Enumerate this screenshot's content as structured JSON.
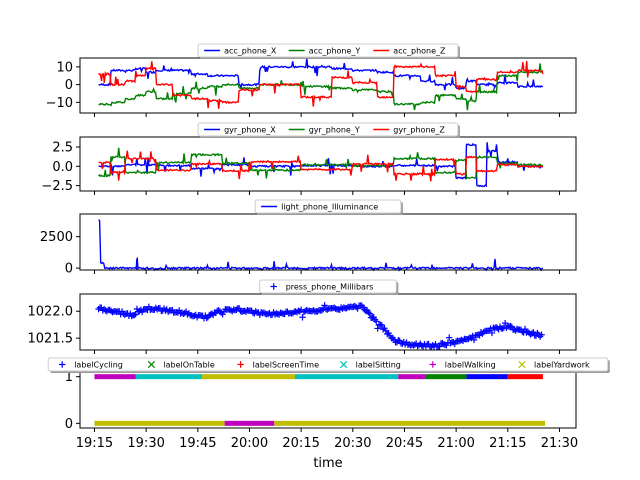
{
  "chart_data": [
    {
      "type": "line",
      "ylim": [
        -16,
        15
      ],
      "yticks": [
        10,
        0,
        -10
      ],
      "ytick_labels": [
        "10",
        "0",
        "−10"
      ],
      "legend": "top-center",
      "series": [
        {
          "name": "acc_phone_X",
          "color": "#0000ff",
          "segments": [
            [
              19.27,
              0
            ],
            [
              19.33,
              8
            ],
            [
              19.4,
              8
            ],
            [
              19.45,
              9
            ],
            [
              19.5,
              7
            ],
            [
              19.55,
              8
            ],
            [
              19.63,
              8
            ],
            [
              19.72,
              6
            ],
            [
              19.8,
              5
            ],
            [
              19.87,
              5
            ],
            [
              19.95,
              0
            ],
            [
              20.05,
              10
            ],
            [
              20.25,
              10
            ],
            [
              20.4,
              9
            ],
            [
              20.5,
              8
            ],
            [
              20.62,
              7
            ],
            [
              20.7,
              5
            ],
            [
              20.83,
              2
            ],
            [
              20.9,
              0
            ],
            [
              21.0,
              -2
            ],
            [
              21.05,
              2
            ],
            [
              21.1,
              0
            ],
            [
              21.2,
              1
            ],
            [
              21.3,
              -1
            ],
            [
              21.42,
              -1
            ]
          ]
        },
        {
          "name": "acc_phone_Y",
          "color": "#008000",
          "segments": [
            [
              19.27,
              -11
            ],
            [
              19.33,
              -10
            ],
            [
              19.4,
              -8
            ],
            [
              19.45,
              -6
            ],
            [
              19.5,
              -4
            ],
            [
              19.55,
              -8
            ],
            [
              19.63,
              -5
            ],
            [
              19.72,
              -2
            ],
            [
              19.8,
              -1
            ],
            [
              19.87,
              0
            ],
            [
              19.95,
              -2
            ],
            [
              20.05,
              0
            ],
            [
              20.25,
              -1
            ],
            [
              20.4,
              -2
            ],
            [
              20.5,
              -3
            ],
            [
              20.62,
              -4
            ],
            [
              20.7,
              -11
            ],
            [
              20.83,
              -10
            ],
            [
              20.9,
              -6
            ],
            [
              21.0,
              -8
            ],
            [
              21.05,
              -9
            ],
            [
              21.1,
              -4
            ],
            [
              21.2,
              5
            ],
            [
              21.3,
              7
            ],
            [
              21.42,
              8
            ]
          ]
        },
        {
          "name": "acc_phone_Z",
          "color": "#ff0000",
          "segments": [
            [
              19.27,
              6
            ],
            [
              19.33,
              0
            ],
            [
              19.4,
              2
            ],
            [
              19.45,
              5
            ],
            [
              19.5,
              9
            ],
            [
              19.55,
              0
            ],
            [
              19.63,
              -6
            ],
            [
              19.72,
              -8
            ],
            [
              19.8,
              -9
            ],
            [
              19.87,
              -10
            ],
            [
              19.95,
              -3
            ],
            [
              20.05,
              0
            ],
            [
              20.25,
              -7
            ],
            [
              20.4,
              4
            ],
            [
              20.5,
              1
            ],
            [
              20.62,
              -7
            ],
            [
              20.7,
              10
            ],
            [
              20.83,
              10
            ],
            [
              20.9,
              5
            ],
            [
              21.0,
              -1
            ],
            [
              21.05,
              -4
            ],
            [
              21.1,
              3
            ],
            [
              21.2,
              7
            ],
            [
              21.3,
              8
            ],
            [
              21.42,
              6
            ]
          ]
        }
      ]
    },
    {
      "type": "line",
      "ylim": [
        -3.2,
        3.8
      ],
      "yticks": [
        2.5,
        0.0,
        -2.5
      ],
      "ytick_labels": [
        "2.5",
        "0.0",
        "−2.5"
      ],
      "legend": "top-center",
      "series": [
        {
          "name": "gyr_phone_X",
          "color": "#0000ff",
          "segments": [
            [
              19.27,
              0
            ],
            [
              19.4,
              0.2
            ],
            [
              19.55,
              0.1
            ],
            [
              19.72,
              -0.3
            ],
            [
              19.87,
              0.2
            ],
            [
              20.0,
              0
            ],
            [
              20.25,
              0.1
            ],
            [
              20.5,
              0
            ],
            [
              20.7,
              0.1
            ],
            [
              20.9,
              0
            ],
            [
              21.0,
              -1.5
            ],
            [
              21.05,
              2.8
            ],
            [
              21.1,
              -2.5
            ],
            [
              21.15,
              2.0
            ],
            [
              21.2,
              0.5
            ],
            [
              21.3,
              0
            ],
            [
              21.42,
              0
            ]
          ]
        },
        {
          "name": "gyr_phone_Y",
          "color": "#008000",
          "segments": [
            [
              19.27,
              -1.2
            ],
            [
              19.33,
              1.2
            ],
            [
              19.4,
              -0.8
            ],
            [
              19.55,
              0.5
            ],
            [
              19.72,
              1.5
            ],
            [
              19.87,
              0.4
            ],
            [
              20.0,
              -0.5
            ],
            [
              20.25,
              0.2
            ],
            [
              20.5,
              0.1
            ],
            [
              20.7,
              1.0
            ],
            [
              20.9,
              -0.8
            ],
            [
              21.0,
              0.8
            ],
            [
              21.05,
              -1.5
            ],
            [
              21.1,
              1.2
            ],
            [
              21.2,
              0.4
            ],
            [
              21.3,
              0.2
            ],
            [
              21.42,
              0
            ]
          ]
        },
        {
          "name": "gyr_phone_Z",
          "color": "#ff0000",
          "segments": [
            [
              19.27,
              0.5
            ],
            [
              19.33,
              -0.8
            ],
            [
              19.4,
              1.0
            ],
            [
              19.55,
              -0.5
            ],
            [
              19.72,
              0.3
            ],
            [
              19.87,
              -0.6
            ],
            [
              20.0,
              0.6
            ],
            [
              20.25,
              -0.4
            ],
            [
              20.5,
              0.3
            ],
            [
              20.7,
              -1.0
            ],
            [
              20.9,
              0.9
            ],
            [
              21.0,
              -1.0
            ],
            [
              21.05,
              1.2
            ],
            [
              21.1,
              -0.6
            ],
            [
              21.2,
              0.2
            ],
            [
              21.3,
              0
            ],
            [
              21.42,
              0
            ]
          ]
        }
      ]
    },
    {
      "type": "line",
      "ylim": [
        -150,
        4300
      ],
      "yticks": [
        2500,
        0
      ],
      "ytick_labels": [
        "2500",
        "0"
      ],
      "legend": "top-center",
      "series": [
        {
          "name": "light_phone_Illuminance",
          "color": "#0000ff",
          "segments": [
            [
              19.27,
              3800
            ],
            [
              19.28,
              400
            ],
            [
              19.3,
              0
            ],
            [
              19.45,
              0
            ],
            [
              19.455,
              700
            ],
            [
              19.46,
              0
            ],
            [
              21.42,
              0
            ]
          ]
        }
      ]
    },
    {
      "type": "scatter",
      "ylim": [
        1021.28,
        1022.32
      ],
      "yticks": [
        1022.0,
        1021.5
      ],
      "ytick_labels": [
        "1022.0",
        "1021.5"
      ],
      "legend": "top-center",
      "series": [
        {
          "name": "press_phone_Millibars",
          "color": "#0000ff",
          "marker": "+",
          "trend": [
            [
              19.27,
              1022.05
            ],
            [
              19.35,
              1022.0
            ],
            [
              19.43,
              1021.92
            ],
            [
              19.5,
              1022.05
            ],
            [
              19.6,
              1022.02
            ],
            [
              19.7,
              1021.96
            ],
            [
              19.78,
              1021.88
            ],
            [
              19.85,
              1022.0
            ],
            [
              19.95,
              1022.03
            ],
            [
              20.05,
              1021.96
            ],
            [
              20.15,
              1021.95
            ],
            [
              20.25,
              1022.0
            ],
            [
              20.35,
              1022.02
            ],
            [
              20.45,
              1022.05
            ],
            [
              20.55,
              1022.08
            ],
            [
              20.62,
              1021.8
            ],
            [
              20.7,
              1021.45
            ],
            [
              20.8,
              1021.38
            ],
            [
              20.9,
              1021.36
            ],
            [
              21.0,
              1021.42
            ],
            [
              21.1,
              1021.55
            ],
            [
              21.18,
              1021.68
            ],
            [
              21.25,
              1021.72
            ],
            [
              21.32,
              1021.62
            ],
            [
              21.42,
              1021.55
            ]
          ]
        }
      ]
    },
    {
      "type": "scatter",
      "ylim": [
        -0.1,
        1.1
      ],
      "yticks": [
        1,
        0
      ],
      "ytick_labels": [
        "1",
        "0"
      ],
      "xticks": [
        19.25,
        19.5,
        19.75,
        20.0,
        20.25,
        20.5,
        20.75,
        21.0,
        21.25,
        21.5
      ],
      "xtick_labels": [
        "19:15",
        "19:30",
        "19:45",
        "20:00",
        "20:15",
        "20:30",
        "20:45",
        "21:00",
        "21:15",
        "21:30"
      ],
      "xlabel": "time",
      "legend": "top-center",
      "series": [
        {
          "name": "labelCycling",
          "color": "#0000ff",
          "marker": "+",
          "on": [
            [
              21.05,
              21.25
            ]
          ]
        },
        {
          "name": "labelOnTable",
          "color": "#008000",
          "marker": "x",
          "on": [
            [
              20.85,
              21.05
            ]
          ]
        },
        {
          "name": "labelScreenTime",
          "color": "#ff0000",
          "marker": "+",
          "on": [
            [
              21.25,
              21.42
            ]
          ]
        },
        {
          "name": "labelSitting",
          "color": "#00bfbf",
          "marker": "x",
          "on": [
            [
              19.45,
              19.77
            ],
            [
              20.22,
              20.72
            ]
          ]
        },
        {
          "name": "labelWalking",
          "color": "#bf00bf",
          "marker": "+",
          "on": [
            [
              19.25,
              19.45
            ],
            [
              20.72,
              20.85
            ]
          ]
        },
        {
          "name": "labelYardwork",
          "color": "#bfbf00",
          "marker": "x",
          "on": [
            [
              19.77,
              20.22
            ]
          ]
        }
      ],
      "zero_bands": [
        {
          "color": "#bfbf00",
          "from": 19.25,
          "to": 19.88
        },
        {
          "color": "#bf00bf",
          "from": 19.88,
          "to": 20.12
        },
        {
          "color": "#bfbf00",
          "from": 20.12,
          "to": 21.43
        }
      ]
    }
  ]
}
